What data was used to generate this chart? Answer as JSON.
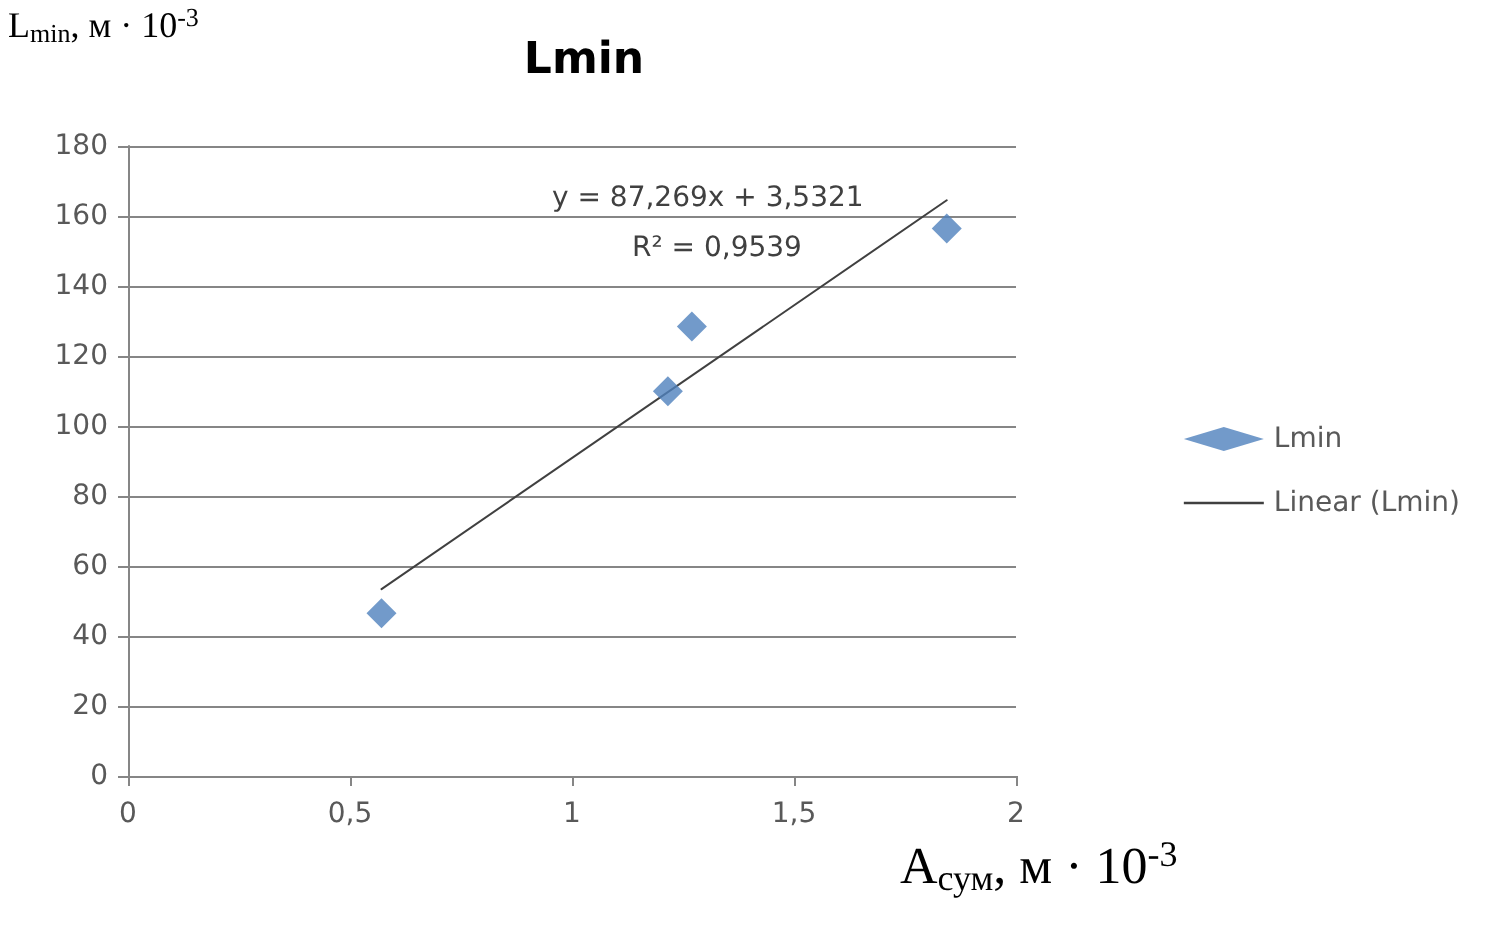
{
  "chart_data": {
    "type": "scatter",
    "title": "Lmin",
    "xlabel": "A$_{сум}$, м · 10$^{-3}$",
    "ylabel": "L$_{min}$, м · 10$^{-3}$",
    "series": [
      {
        "name": "Lmin",
        "color": "#4f81bd",
        "marker": "diamond",
        "x": [
          0.571,
          1.216,
          1.27,
          1.844
        ],
        "values": [
          46.5,
          109.9,
          128.4,
          156.4
        ]
      },
      {
        "name": "Linear (Lmin)",
        "type": "line",
        "color": "#404040",
        "marker": "none",
        "line_style": "solid",
        "x": [
          0.571,
          1.844
        ],
        "values": [
          53.4,
          164.5
        ]
      }
    ],
    "annotations": [
      "y = 87,269x + 3,5321",
      "R² = 0,9539"
    ],
    "xlim": [
      0,
      2
    ],
    "xticks": [
      0,
      {
        "value": 0.5,
        "label": "0,5"
      },
      1,
      {
        "value": 1.5,
        "label": "1,5"
      },
      2
    ],
    "ylim": [
      0,
      180
    ],
    "yticks": [
      0,
      20,
      40,
      60,
      80,
      100,
      120,
      140,
      160,
      180
    ],
    "grid": "y",
    "legend": "right"
  }
}
